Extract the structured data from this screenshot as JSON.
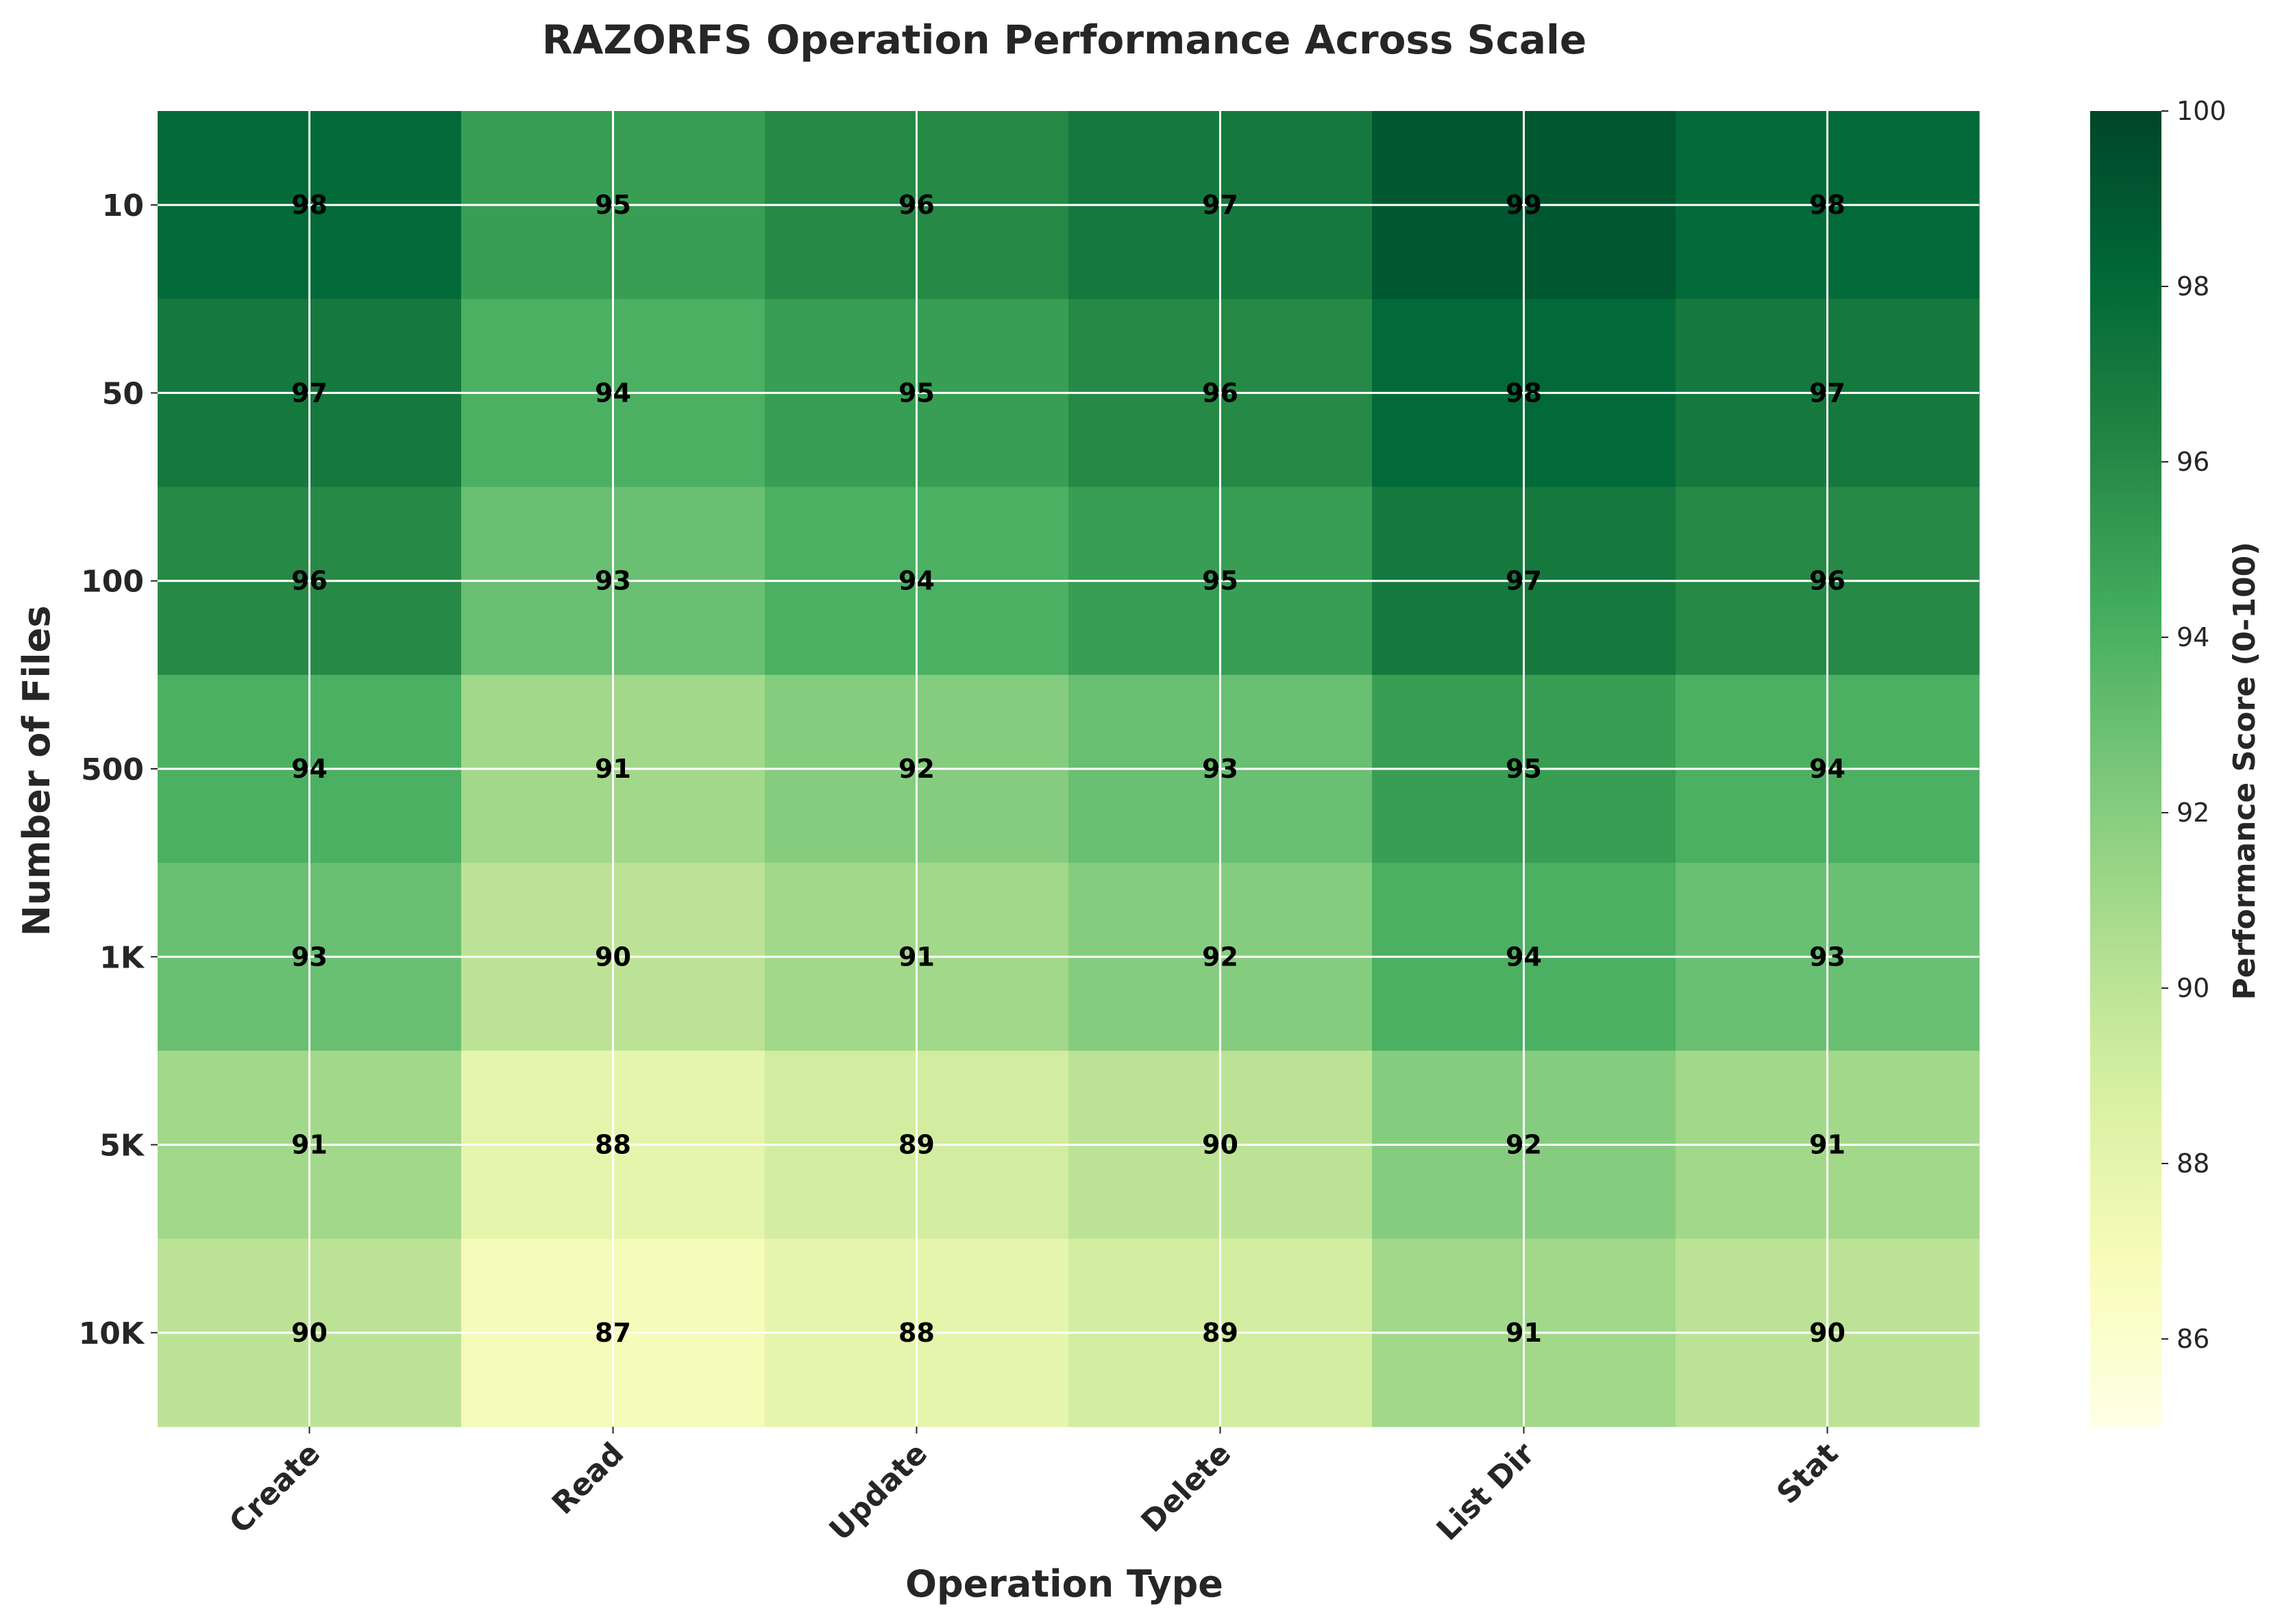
{
  "chart_data": {
    "type": "heatmap",
    "title": "RAZORFS Operation Performance Across Scale",
    "xlabel": "Operation Type",
    "ylabel": "Number of Files",
    "x_categories": [
      "Create",
      "Read",
      "Update",
      "Delete",
      "List Dir",
      "Stat"
    ],
    "y_categories": [
      "10",
      "50",
      "100",
      "500",
      "1K",
      "5K",
      "10K"
    ],
    "values": [
      [
        98,
        95,
        96,
        97,
        99,
        98
      ],
      [
        97,
        94,
        95,
        96,
        98,
        97
      ],
      [
        96,
        93,
        94,
        95,
        97,
        96
      ],
      [
        94,
        91,
        92,
        93,
        95,
        94
      ],
      [
        93,
        90,
        91,
        92,
        94,
        93
      ],
      [
        91,
        88,
        89,
        90,
        92,
        91
      ],
      [
        90,
        87,
        88,
        89,
        91,
        90
      ]
    ],
    "colorbar": {
      "label": "Performance Score (0-100)",
      "range": [
        85,
        100
      ],
      "ticks": [
        86,
        88,
        90,
        92,
        94,
        96,
        98,
        100
      ],
      "colormap": "YlGn"
    },
    "grid": true,
    "cell_labels": true
  }
}
